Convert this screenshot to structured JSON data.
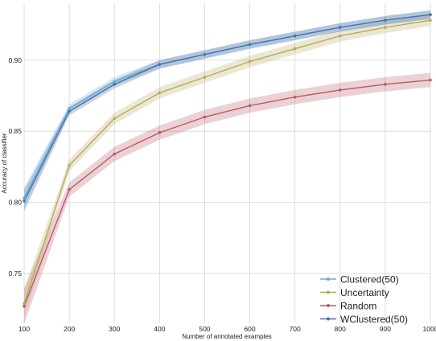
{
  "chart_data": {
    "type": "line",
    "title": "",
    "xlabel": "Number of annotated examples",
    "ylabel": "Accuracy of classifier",
    "x": [
      100,
      200,
      300,
      400,
      500,
      600,
      700,
      800,
      900,
      1000
    ],
    "xlim": [
      100,
      1000
    ],
    "ylim": [
      0.715,
      0.94
    ],
    "xticks": [
      100,
      200,
      300,
      400,
      500,
      600,
      700,
      800,
      900,
      1000
    ],
    "yticks": [
      "0.75",
      "0.80",
      "0.85",
      "0.90"
    ],
    "ytick_values": [
      0.75,
      0.8,
      0.85,
      0.9
    ],
    "grid": true,
    "legend_position": "bottom-right",
    "series": [
      {
        "name": "Clustered(50)",
        "color": "#6ea8d0",
        "values": [
          0.803,
          0.866,
          0.885,
          0.897,
          0.904,
          0.911,
          0.917,
          0.923,
          0.928,
          0.932
        ],
        "band": 0.003
      },
      {
        "name": "Uncertainty",
        "color": "#b8a860",
        "values": [
          0.729,
          0.826,
          0.859,
          0.877,
          0.888,
          0.899,
          0.908,
          0.917,
          0.923,
          0.928
        ],
        "band": 0.004
      },
      {
        "name": "Random",
        "color": "#b85a66",
        "values": [
          0.727,
          0.809,
          0.834,
          0.849,
          0.86,
          0.868,
          0.874,
          0.879,
          0.883,
          0.886
        ],
        "band": 0.005
      },
      {
        "name": "WClustered(50)",
        "color": "#4a72a8",
        "values": [
          0.801,
          0.864,
          0.883,
          0.897,
          0.904,
          0.911,
          0.917,
          0.923,
          0.928,
          0.932
        ],
        "band": 0.003
      }
    ]
  }
}
